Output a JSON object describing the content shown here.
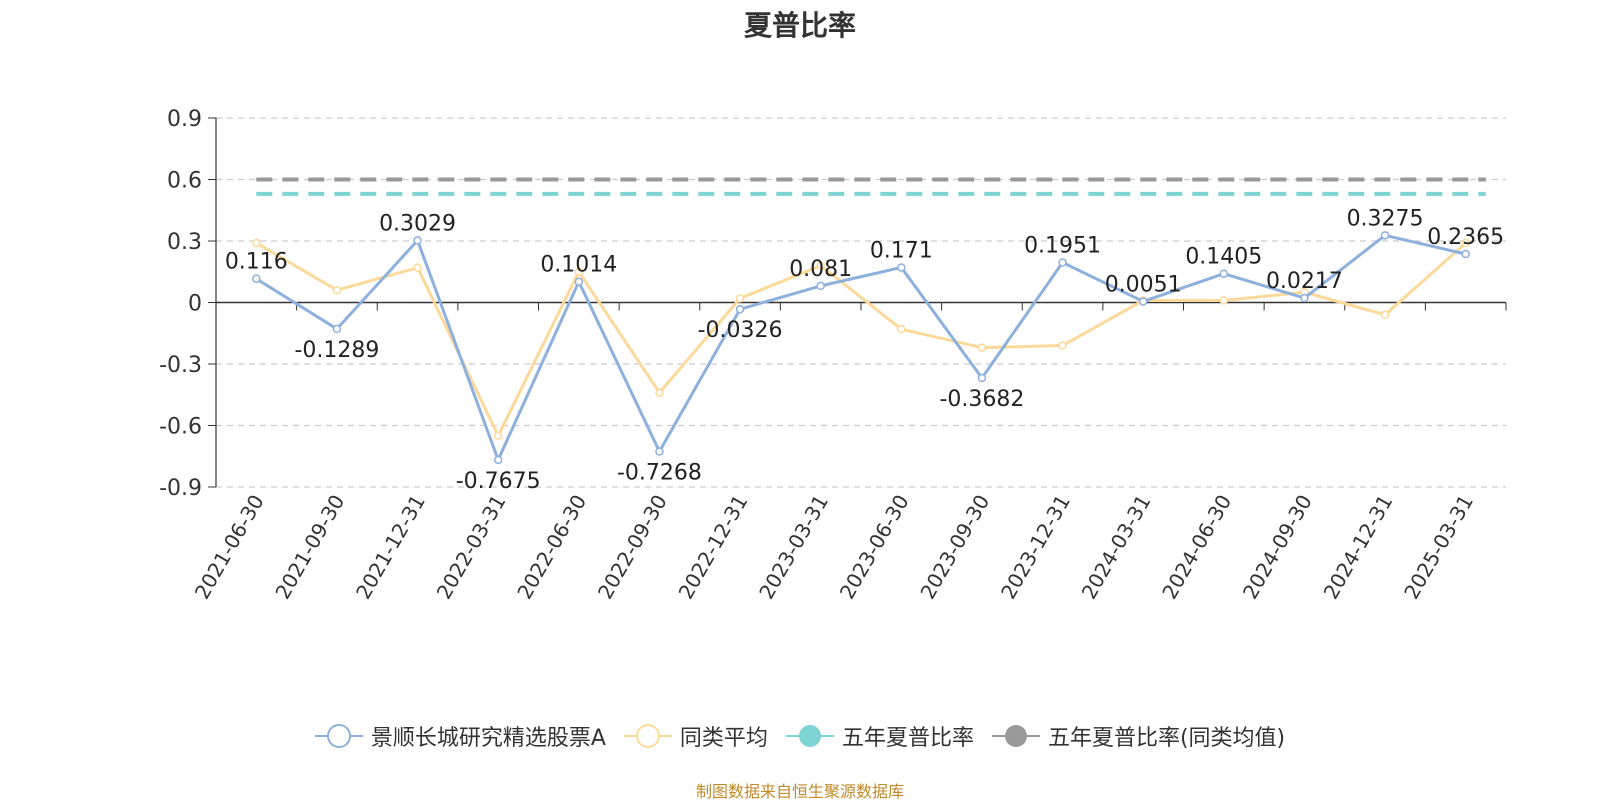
{
  "chart_data": {
    "type": "line",
    "title": "夏普比率",
    "categories": [
      "2021-06-30",
      "2021-09-30",
      "2021-12-31",
      "2022-03-31",
      "2022-06-30",
      "2022-09-30",
      "2022-12-31",
      "2023-03-31",
      "2023-06-30",
      "2023-09-30",
      "2023-12-31",
      "2024-03-31",
      "2024-06-30",
      "2024-09-30",
      "2024-12-31",
      "2025-03-31"
    ],
    "ylim": [
      -0.9,
      0.9
    ],
    "yticks": [
      "0.9",
      "0.6",
      "0.3",
      "0",
      "-0.3",
      "-0.6",
      "-0.9"
    ],
    "grid": true,
    "legend_position": "bottom",
    "series": [
      {
        "name": "景顺长城研究精选股票A",
        "color": "#8eb0dc",
        "values": [
          0.116,
          -0.1289,
          0.3029,
          -0.7675,
          0.1014,
          -0.7268,
          -0.0326,
          0.081,
          0.171,
          -0.3682,
          0.1951,
          0.0051,
          0.1405,
          0.0217,
          0.3275,
          0.2365
        ],
        "labels": [
          "0.116",
          "-0.1289",
          "0.3029",
          "-0.7675",
          "0.1014",
          "-0.7268",
          "-0.0326",
          "0.081",
          "0.171",
          "-0.3682",
          "0.1951",
          "0.0051",
          "0.1405",
          "0.0217",
          "0.3275",
          "0.2365"
        ]
      },
      {
        "name": "同类平均",
        "color": "#fbd99a",
        "values": [
          0.29,
          0.06,
          0.17,
          -0.65,
          0.15,
          -0.44,
          0.02,
          0.18,
          -0.13,
          -0.22,
          -0.21,
          0.01,
          0.01,
          0.05,
          -0.06,
          0.29
        ]
      },
      {
        "name": "五年夏普比率",
        "color": "#7ed3d3",
        "constant": 0.53
      },
      {
        "name": "五年夏普比率(同类均值)",
        "color": "#999999",
        "constant": 0.6
      }
    ]
  },
  "footer": {
    "source": "制图数据来自恒生聚源数据库"
  }
}
